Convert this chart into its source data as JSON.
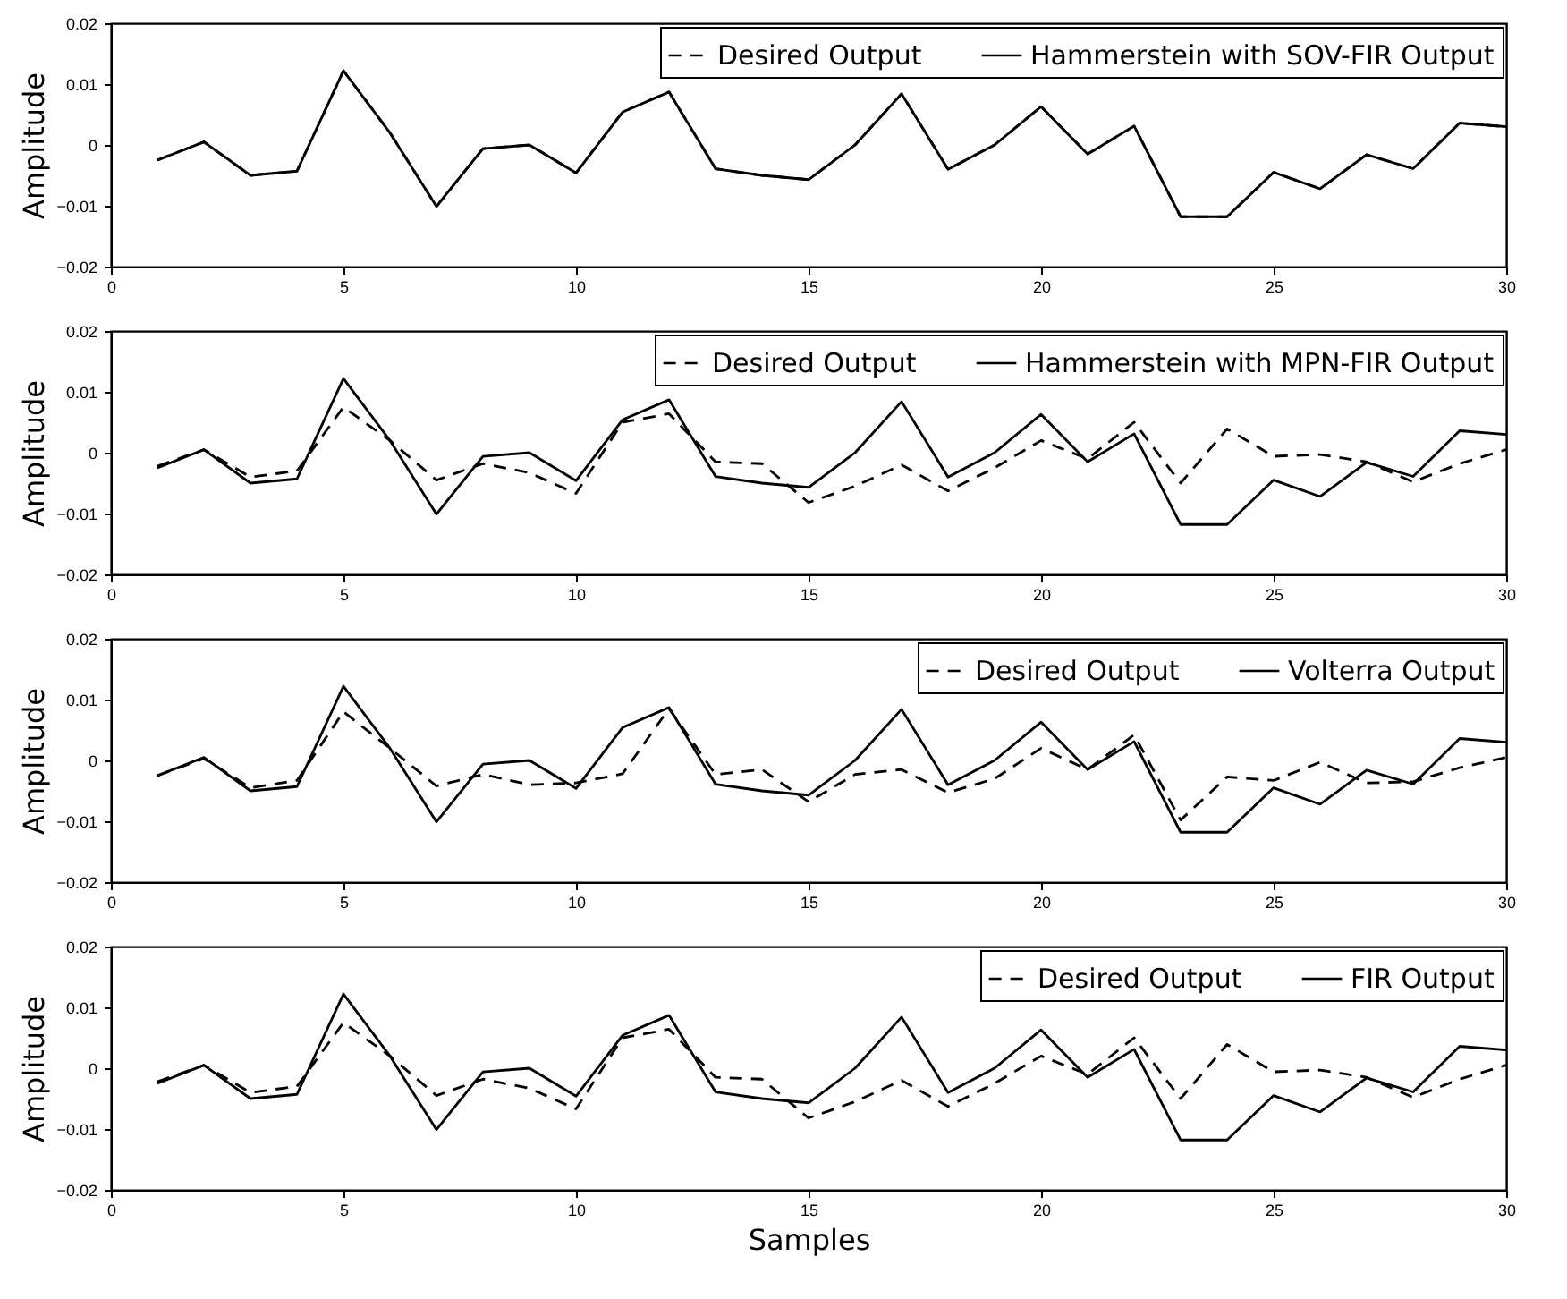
{
  "chart_data": [
    {
      "type": "line",
      "ylabel": "Amplitude",
      "x": [
        1,
        2,
        3,
        4,
        5,
        6,
        7,
        8,
        9,
        10,
        11,
        12,
        13,
        14,
        15,
        16,
        17,
        18,
        19,
        20,
        21,
        22,
        23,
        24,
        25,
        26,
        27,
        28,
        29,
        30
      ],
      "xlim": [
        0,
        30
      ],
      "xticks": [
        0,
        5,
        10,
        15,
        20,
        25,
        30
      ],
      "ylim": [
        -0.02,
        0.02
      ],
      "yticks": [
        -0.02,
        -0.01,
        0,
        0.01,
        0.02
      ],
      "legend": "top right",
      "grid": false,
      "series": [
        {
          "name": "Desired Output",
          "color": "#000000",
          "line_style": "dashed",
          "values": [
            -0.0025,
            0.0005,
            -0.005,
            -0.0043,
            0.0122,
            0.002,
            -0.0101,
            -0.0006,
            0.0,
            -0.0046,
            0.0054,
            0.0087,
            -0.0039,
            -0.005,
            -0.0057,
            0.0,
            0.0084,
            -0.004,
            0.0,
            0.0063,
            -0.0015,
            0.0031,
            -0.0118,
            -0.0118,
            -0.0045,
            -0.0072,
            -0.0016,
            -0.0039,
            0.0036,
            0.003
          ]
        },
        {
          "name": "Hammerstein with SOV-FIR Output",
          "color": "#000000",
          "line_style": "solid",
          "values": [
            -0.0025,
            0.0005,
            -0.005,
            -0.0043,
            0.0122,
            0.002,
            -0.0101,
            -0.0006,
            0.0,
            -0.0046,
            0.0054,
            0.0087,
            -0.0039,
            -0.005,
            -0.0057,
            0.0,
            0.0084,
            -0.004,
            0.0,
            0.0063,
            -0.0015,
            0.0031,
            -0.0118,
            -0.0118,
            -0.0045,
            -0.0072,
            -0.0016,
            -0.0039,
            0.0036,
            0.003
          ]
        }
      ]
    },
    {
      "type": "line",
      "ylabel": "Amplitude",
      "x": [
        1,
        2,
        3,
        4,
        5,
        6,
        7,
        8,
        9,
        10,
        11,
        12,
        13,
        14,
        15,
        16,
        17,
        18,
        19,
        20,
        21,
        22,
        23,
        24,
        25,
        26,
        27,
        28,
        29,
        30
      ],
      "xlim": [
        0,
        30
      ],
      "xticks": [
        0,
        5,
        10,
        15,
        20,
        25,
        30
      ],
      "ylim": [
        -0.02,
        0.02
      ],
      "yticks": [
        -0.02,
        -0.01,
        0,
        0.01,
        0.02
      ],
      "legend": "top right",
      "grid": false,
      "series": [
        {
          "name": "Desired Output",
          "color": "#000000",
          "line_style": "dashed",
          "values": [
            -0.0022,
            0.0005,
            -0.004,
            -0.003,
            0.0075,
            0.002,
            -0.0045,
            -0.0018,
            -0.0033,
            -0.0067,
            0.005,
            0.0064,
            -0.0015,
            -0.0018,
            -0.0082,
            -0.0055,
            -0.002,
            -0.0063,
            -0.0025,
            0.002,
            -0.001,
            0.005,
            -0.005,
            0.0039,
            -0.0006,
            -0.0003,
            -0.0015,
            -0.0048,
            -0.0018,
            0.0005
          ]
        },
        {
          "name": "Hammerstein with MPN-FIR Output",
          "color": "#000000",
          "line_style": "solid",
          "values": [
            -0.0025,
            0.0005,
            -0.005,
            -0.0043,
            0.0122,
            0.002,
            -0.0101,
            -0.0006,
            0.0,
            -0.0046,
            0.0054,
            0.0087,
            -0.0039,
            -0.005,
            -0.0057,
            0.0,
            0.0084,
            -0.004,
            0.0,
            0.0063,
            -0.0015,
            0.0031,
            -0.0118,
            -0.0118,
            -0.0045,
            -0.0072,
            -0.0016,
            -0.0039,
            0.0036,
            0.003
          ]
        }
      ]
    },
    {
      "type": "line",
      "ylabel": "Amplitude",
      "x": [
        1,
        2,
        3,
        4,
        5,
        6,
        7,
        8,
        9,
        10,
        11,
        12,
        13,
        14,
        15,
        16,
        17,
        18,
        19,
        20,
        21,
        22,
        23,
        24,
        25,
        26,
        27,
        28,
        29,
        30
      ],
      "xlim": [
        0,
        30
      ],
      "xticks": [
        0,
        5,
        10,
        15,
        20,
        25,
        30
      ],
      "ylim": [
        -0.02,
        0.02
      ],
      "yticks": [
        -0.02,
        -0.01,
        0,
        0.01,
        0.02
      ],
      "legend": "top right",
      "grid": false,
      "series": [
        {
          "name": "Desired Output",
          "color": "#000000",
          "line_style": "dashed",
          "values": [
            -0.0025,
            0.0003,
            -0.0045,
            -0.0033,
            0.008,
            0.002,
            -0.0042,
            -0.0023,
            -0.004,
            -0.0037,
            -0.0022,
            0.0085,
            -0.0023,
            -0.0015,
            -0.0068,
            -0.0023,
            -0.0015,
            -0.0053,
            -0.003,
            0.002,
            -0.0015,
            0.0042,
            -0.0098,
            -0.0027,
            -0.0033,
            -0.0003,
            -0.0037,
            -0.0035,
            -0.0012,
            0.0005
          ]
        },
        {
          "name": "Volterra Output",
          "color": "#000000",
          "line_style": "solid",
          "values": [
            -0.0025,
            0.0005,
            -0.005,
            -0.0043,
            0.0122,
            0.002,
            -0.0101,
            -0.0006,
            0.0,
            -0.0046,
            0.0054,
            0.0087,
            -0.0039,
            -0.005,
            -0.0057,
            0.0,
            0.0084,
            -0.004,
            0.0,
            0.0063,
            -0.0015,
            0.0031,
            -0.0118,
            -0.0118,
            -0.0045,
            -0.0072,
            -0.0016,
            -0.0039,
            0.0036,
            0.003
          ]
        }
      ]
    },
    {
      "type": "line",
      "ylabel": "Amplitude",
      "xlabel": "Samples",
      "x": [
        1,
        2,
        3,
        4,
        5,
        6,
        7,
        8,
        9,
        10,
        11,
        12,
        13,
        14,
        15,
        16,
        17,
        18,
        19,
        20,
        21,
        22,
        23,
        24,
        25,
        26,
        27,
        28,
        29,
        30
      ],
      "xlim": [
        0,
        30
      ],
      "xticks": [
        0,
        5,
        10,
        15,
        20,
        25,
        30
      ],
      "ylim": [
        -0.02,
        0.02
      ],
      "yticks": [
        -0.02,
        -0.01,
        0,
        0.01,
        0.02
      ],
      "legend": "top right",
      "grid": false,
      "series": [
        {
          "name": "Desired Output",
          "color": "#000000",
          "line_style": "dashed",
          "values": [
            -0.0022,
            0.0005,
            -0.004,
            -0.003,
            0.0075,
            0.002,
            -0.0045,
            -0.0018,
            -0.0033,
            -0.0067,
            0.005,
            0.0064,
            -0.0015,
            -0.0018,
            -0.0082,
            -0.0055,
            -0.002,
            -0.0063,
            -0.0025,
            0.002,
            -0.001,
            0.005,
            -0.005,
            0.0039,
            -0.0006,
            -0.0003,
            -0.0015,
            -0.0048,
            -0.0018,
            0.0005
          ]
        },
        {
          "name": "FIR Output",
          "color": "#000000",
          "line_style": "solid",
          "values": [
            -0.0025,
            0.0005,
            -0.005,
            -0.0043,
            0.0122,
            0.002,
            -0.0101,
            -0.0006,
            0.0,
            -0.0046,
            0.0054,
            0.0087,
            -0.0039,
            -0.005,
            -0.0057,
            0.0,
            0.0084,
            -0.004,
            0.0,
            0.0063,
            -0.0015,
            0.0031,
            -0.0118,
            -0.0118,
            -0.0045,
            -0.0072,
            -0.0016,
            -0.0039,
            0.0036,
            0.003
          ]
        }
      ]
    }
  ]
}
